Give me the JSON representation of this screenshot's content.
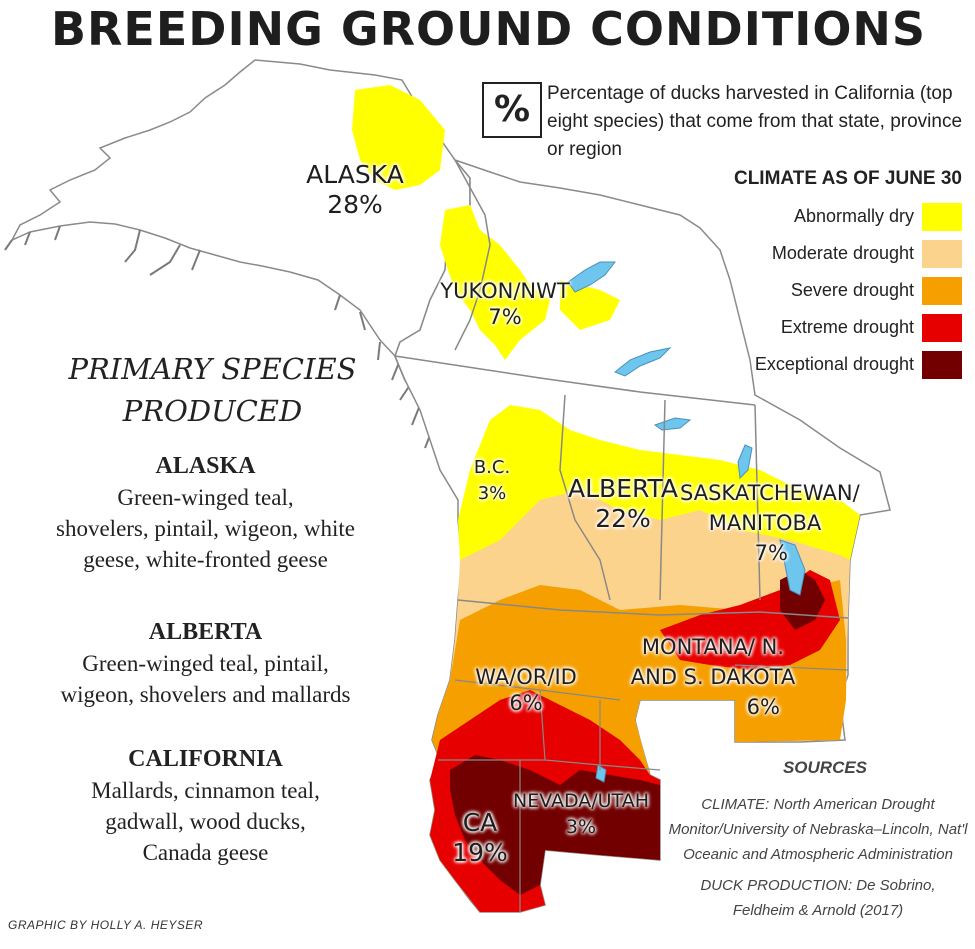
{
  "title": "BREEDING GROUND CONDITIONS",
  "pct_key": {
    "symbol": "%",
    "description": "Percentage of ducks harvested in California (top eight species) that come from that state, province or region"
  },
  "legend": {
    "title": "CLIMATE AS OF JUNE 30",
    "items": [
      {
        "label": "Abnormally dry",
        "color": "#ffff00"
      },
      {
        "label": "Moderate drought",
        "color": "#fcd38d"
      },
      {
        "label": "Severe drought",
        "color": "#f5a000"
      },
      {
        "label": "Extreme drought",
        "color": "#e60000"
      },
      {
        "label": "Exceptional drought",
        "color": "#730000"
      }
    ]
  },
  "regions": [
    {
      "name": "ALASKA",
      "pct": "28%"
    },
    {
      "name": "YUKON/NWT",
      "pct": "7%"
    },
    {
      "name": "B.C.",
      "pct": "3%"
    },
    {
      "name": "ALBERTA",
      "pct": "22%"
    },
    {
      "name": "SASKATCHEWAN/ MANITOBA",
      "pct": "7%"
    },
    {
      "name": "MONTANA/ N. AND S. DAKOTA",
      "pct": "6%"
    },
    {
      "name": "WA/OR/ID",
      "pct": "6%"
    },
    {
      "name": "NEVADA/UTAH",
      "pct": "3%"
    },
    {
      "name": "CA",
      "pct": "19%"
    }
  ],
  "species": {
    "heading_line1": "PRIMARY SPECIES",
    "heading_line2": "PRODUCED",
    "groups": [
      {
        "name": "ALASKA",
        "lines": [
          "Green-winged teal,",
          "shovelers, pintail, wigeon, white",
          "geese, white-fronted geese"
        ]
      },
      {
        "name": "ALBERTA",
        "lines": [
          "Green-winged teal, pintail,",
          "wigeon, shovelers and mallards"
        ]
      },
      {
        "name": "CALIFORNIA",
        "lines": [
          "Mallards, cinnamon teal,",
          "gadwall, wood ducks,",
          "Canada geese"
        ]
      }
    ]
  },
  "sources": {
    "title": "SOURCES",
    "climate": "CLIMATE: North American Drought Monitor/University of Nebraska–Lincoln, Nat'l Oceanic and Atmospheric Administration",
    "duck_production": "DUCK PRODUCTION: De Sobrino, Feldheim & Arnold (2017)"
  },
  "credit": "GRAPHIC BY HOLLY A. HEYSER",
  "colors": {
    "water": "#6ec6ee",
    "border": "#888888",
    "coast": "#7a7a7a"
  }
}
